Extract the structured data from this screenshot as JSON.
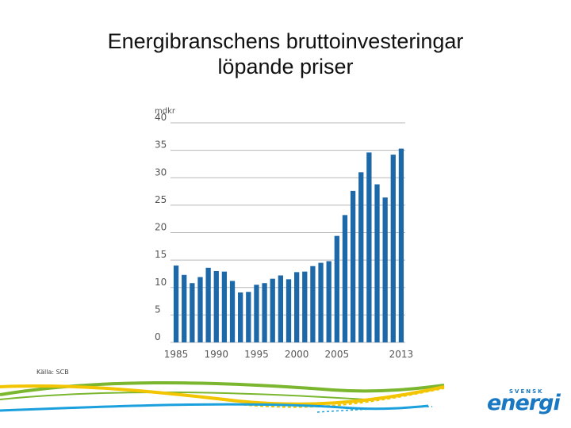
{
  "title": {
    "line1": "Energibranschens bruttoinvesteringar",
    "line2": "löpande priser"
  },
  "source": "Källa: SCB",
  "logo": {
    "small": "SVENSK",
    "big": "energi"
  },
  "colors": {
    "bar": "#1d68a8",
    "grid": "#b8b8b8",
    "axis_text": "#555555",
    "wave_green": "#7ab62e",
    "wave_yellow": "#f2c500",
    "wave_blue": "#1aa0dc",
    "logo": "#1a78c2"
  },
  "chart_data": {
    "type": "bar",
    "title": "Energibranschens bruttoinvesteringar löpande priser",
    "ylabel": "mdkr",
    "xlabel": "",
    "ylim": [
      0,
      40
    ],
    "yticks": [
      0,
      5,
      10,
      15,
      20,
      25,
      30,
      35,
      40
    ],
    "grid": true,
    "x_tick_labels": [
      {
        "year": 1985,
        "label": "1985"
      },
      {
        "year": 1990,
        "label": "1990"
      },
      {
        "year": 1995,
        "label": "1995"
      },
      {
        "year": 2000,
        "label": "2000"
      },
      {
        "year": 2005,
        "label": "2005"
      },
      {
        "year": 2013,
        "label": "2013"
      }
    ],
    "categories": [
      "1985",
      "1986",
      "1987",
      "1988",
      "1989",
      "1990",
      "1991",
      "1992",
      "1993",
      "1994",
      "1995",
      "1996",
      "1997",
      "1998",
      "1999",
      "2000",
      "2001",
      "2002",
      "2003",
      "2004",
      "2005",
      "2006",
      "2007",
      "2008",
      "2009",
      "2010",
      "2011",
      "2012",
      "2013"
    ],
    "values": [
      14.0,
      12.3,
      10.8,
      11.9,
      13.6,
      13.0,
      12.9,
      11.2,
      9.1,
      9.2,
      10.5,
      10.8,
      11.6,
      12.2,
      11.5,
      12.8,
      12.9,
      13.9,
      14.5,
      14.8,
      19.4,
      23.2,
      27.6,
      31.0,
      34.6,
      28.8,
      26.4,
      34.2,
      35.3
    ]
  }
}
